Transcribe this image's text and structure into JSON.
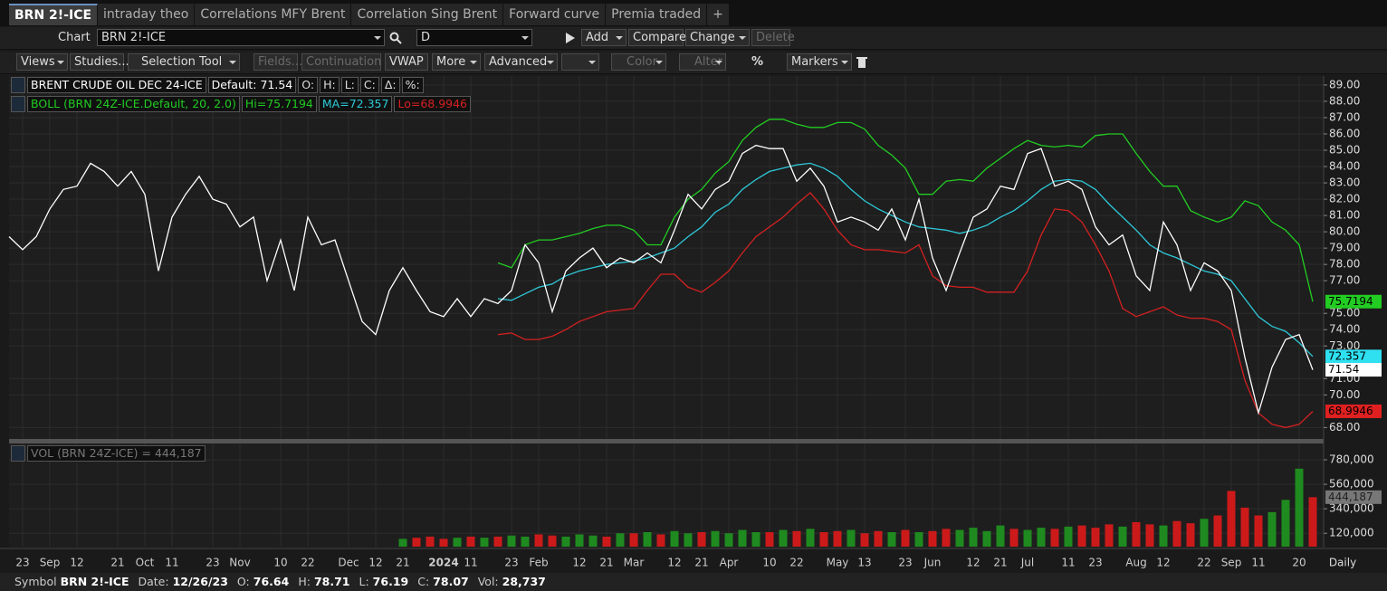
{
  "tabs": [
    "BRN 2!-ICE",
    "intraday theo",
    "Correlations MFY Brent",
    "Correlation Sing Brent",
    "Forward curve",
    "Premia traded",
    "+"
  ],
  "toolbar": {
    "chart_label": "Chart",
    "symbol": "BRN 2!-ICE",
    "interval": "D",
    "buttons": [
      "Add",
      "Compare",
      "Change",
      "Delete"
    ]
  },
  "toolbar2": [
    "Views",
    "Studies...",
    "Selection Tool",
    "Fields...",
    "Continuation",
    "VWAP",
    "More",
    "Advanced",
    "Color",
    "Alter",
    "%",
    "Markers"
  ],
  "status": [
    "Symbol",
    "BRN 2!-ICE",
    "Date:",
    "12/26/23",
    "O:",
    "76.64",
    "H:",
    "78.71",
    "L:",
    "76.19",
    "C:",
    "78.07",
    "Vol:",
    "28,737"
  ],
  "chart_data": {
    "type": "line",
    "legend": [
      "Default: 71.54",
      "O:",
      "H:",
      "L:",
      "C:",
      "Δ:",
      "%:"
    ],
    "study": "BOLL (BRN 24Z-ICE.Default, 20, 2.0)",
    "interval_label": "Daily",
    "grid": true,
    "categories": [
      null,
      "23",
      null,
      "Sep",
      null,
      "12",
      null,
      null,
      "21",
      null,
      "Oct",
      null,
      "11",
      null,
      null,
      "23",
      null,
      "Nov",
      null,
      null,
      "10",
      null,
      "22",
      null,
      null,
      "Dec",
      null,
      "12",
      null,
      "21",
      null,
      null,
      "2024",
      null,
      "11",
      null,
      null,
      "23",
      null,
      "Feb",
      null,
      null,
      "12",
      null,
      "21",
      null,
      "Mar",
      null,
      null,
      "12",
      null,
      "21",
      null,
      "Apr",
      null,
      null,
      "10",
      null,
      "22",
      null,
      null,
      "May",
      null,
      "13",
      null,
      null,
      "23",
      null,
      "Jun",
      null,
      null,
      "12",
      null,
      "21",
      null,
      "Jul",
      null,
      null,
      "11",
      null,
      "23",
      null,
      null,
      "Aug",
      null,
      "12",
      null,
      null,
      "22",
      null,
      "Sep",
      null,
      "11",
      null,
      null,
      "20",
      null
    ],
    "ylim": [
      67.3,
      89.55
    ],
    "yticks": [
      {
        "value": 89,
        "label": "89.00"
      },
      {
        "value": 88,
        "label": "88.00"
      },
      {
        "value": 87,
        "label": "87.00"
      },
      {
        "value": 86,
        "label": "86.00"
      },
      {
        "value": 85,
        "label": "85.00"
      },
      {
        "value": 84,
        "label": "84.00"
      },
      {
        "value": 83,
        "label": "83.00"
      },
      {
        "value": 82,
        "label": "82.00"
      },
      {
        "value": 81,
        "label": "81.00"
      },
      {
        "value": 80,
        "label": "80.00"
      },
      {
        "value": 79,
        "label": "79.00"
      },
      {
        "value": 78,
        "label": "78.00"
      },
      {
        "value": 77,
        "label": "77.00"
      },
      {
        "value": 75,
        "label": "75.00"
      },
      {
        "value": 74,
        "label": "74.00"
      },
      {
        "value": 73,
        "label": "73.00"
      },
      {
        "value": 71,
        "label": "71.00"
      },
      {
        "value": 70,
        "label": "70.00"
      },
      {
        "value": 68,
        "label": "68.00"
      }
    ],
    "series": [
      {
        "name": "BRENT CRUDE OIL DEC 24-ICE",
        "color": "#ffffff",
        "values": [
          79.7,
          78.9,
          79.7,
          81.4,
          82.6,
          82.8,
          84.2,
          83.7,
          82.8,
          83.7,
          82.3,
          77.6,
          80.9,
          82.3,
          83.4,
          82.0,
          81.7,
          80.3,
          80.9,
          77.0,
          79.5,
          76.4,
          80.9,
          79.2,
          79.5,
          77.0,
          74.5,
          73.7,
          76.4,
          77.8,
          76.4,
          75.1,
          74.8,
          75.9,
          74.8,
          75.9,
          75.6,
          76.4,
          79.2,
          78.1,
          75.1,
          77.6,
          78.4,
          79.0,
          77.8,
          78.4,
          78.1,
          78.7,
          78.1,
          80.1,
          82.3,
          81.4,
          82.6,
          83.1,
          84.8,
          85.3,
          85.1,
          85.1,
          83.1,
          83.9,
          82.8,
          80.6,
          80.9,
          80.6,
          80.1,
          81.4,
          79.5,
          82.0,
          78.4,
          76.4,
          78.7,
          80.9,
          81.4,
          82.8,
          82.6,
          84.8,
          85.1,
          82.8,
          83.1,
          82.6,
          80.3,
          79.2,
          79.8,
          77.3,
          76.4,
          80.6,
          79.2,
          76.4,
          78.1,
          77.6,
          76.4,
          72.3,
          68.9,
          71.7,
          73.4,
          73.7,
          71.54
        ]
      },
      {
        "name": "Hi=75.7194",
        "color": "#22cc22",
        "values": [
          null,
          null,
          null,
          null,
          null,
          null,
          null,
          null,
          null,
          null,
          null,
          null,
          null,
          null,
          null,
          null,
          null,
          null,
          null,
          null,
          null,
          null,
          null,
          null,
          null,
          null,
          null,
          null,
          null,
          null,
          null,
          null,
          null,
          null,
          null,
          null,
          78.1,
          77.8,
          79.2,
          79.5,
          79.5,
          79.7,
          79.9,
          80.2,
          80.4,
          80.4,
          80.1,
          79.2,
          79.2,
          80.9,
          82.0,
          82.6,
          83.6,
          84.3,
          85.6,
          86.4,
          86.9,
          86.9,
          86.6,
          86.4,
          86.4,
          86.7,
          86.7,
          86.3,
          85.3,
          84.7,
          83.9,
          82.3,
          82.3,
          83.1,
          83.2,
          83.1,
          83.9,
          84.5,
          85.1,
          85.6,
          85.3,
          85.2,
          85.3,
          85.2,
          85.9,
          86.0,
          86.0,
          84.8,
          83.7,
          82.8,
          82.8,
          81.3,
          80.9,
          80.6,
          80.9,
          81.9,
          81.6,
          80.6,
          80.1,
          79.2,
          75.7194
        ]
      },
      {
        "name": "MA=72.357",
        "color": "#2ec8d8",
        "values": [
          null,
          null,
          null,
          null,
          null,
          null,
          null,
          null,
          null,
          null,
          null,
          null,
          null,
          null,
          null,
          null,
          null,
          null,
          null,
          null,
          null,
          null,
          null,
          null,
          null,
          null,
          null,
          null,
          null,
          null,
          null,
          null,
          null,
          null,
          null,
          null,
          75.9,
          75.8,
          76.2,
          76.6,
          76.8,
          77.3,
          77.6,
          77.8,
          78.0,
          78.1,
          78.2,
          78.4,
          78.7,
          79.0,
          79.7,
          80.3,
          81.2,
          81.7,
          82.6,
          83.2,
          83.7,
          83.9,
          84.1,
          84.2,
          83.9,
          83.4,
          82.6,
          81.9,
          81.4,
          81.0,
          80.6,
          80.3,
          80.2,
          80.1,
          79.9,
          80.1,
          80.4,
          80.9,
          81.3,
          81.9,
          82.6,
          83.1,
          83.2,
          83.1,
          82.6,
          81.7,
          80.9,
          80.1,
          79.2,
          78.7,
          78.4,
          78.0,
          77.6,
          77.4,
          77.0,
          75.9,
          74.8,
          74.2,
          73.9,
          73.2,
          72.357
        ]
      },
      {
        "name": "Lo=68.9946",
        "color": "#d42020",
        "values": [
          null,
          null,
          null,
          null,
          null,
          null,
          null,
          null,
          null,
          null,
          null,
          null,
          null,
          null,
          null,
          null,
          null,
          null,
          null,
          null,
          null,
          null,
          null,
          null,
          null,
          null,
          null,
          null,
          null,
          null,
          null,
          null,
          null,
          null,
          null,
          null,
          73.7,
          73.8,
          73.4,
          73.4,
          73.6,
          74.0,
          74.5,
          74.8,
          75.1,
          75.2,
          75.3,
          76.4,
          77.4,
          77.4,
          76.6,
          76.3,
          76.9,
          77.6,
          78.7,
          79.7,
          80.3,
          80.9,
          81.7,
          82.4,
          81.4,
          80.1,
          79.2,
          78.9,
          78.9,
          78.8,
          78.7,
          79.2,
          77.3,
          76.7,
          76.6,
          76.6,
          76.3,
          76.3,
          76.3,
          77.6,
          79.8,
          81.4,
          81.3,
          80.6,
          79.2,
          77.6,
          75.3,
          74.8,
          75.1,
          75.4,
          74.9,
          74.7,
          74.7,
          74.5,
          74.0,
          70.9,
          68.9,
          68.2,
          68.0,
          68.2,
          68.9946
        ]
      }
    ],
    "markers": [
      {
        "value": 75.7194,
        "color": "#22cc22"
      },
      {
        "value": 72.357,
        "color": "#2ee0f0"
      },
      {
        "value": 71.54,
        "color": "#ffffff"
      },
      {
        "value": 68.9946,
        "color": "#e02020"
      }
    ],
    "volume": {
      "name": "VOL (BRN 24Z-ICE) = 444,187",
      "up_color": "#1f8a1f",
      "down_color": "#cc1a1a",
      "ylim": [
        0,
        910000
      ],
      "yticks": [
        {
          "value": 780000,
          "label": "780,000"
        },
        {
          "value": 560000,
          "label": "560,000"
        },
        {
          "value": 340000,
          "label": "340,000"
        },
        {
          "value": 120000,
          "label": "120,000"
        }
      ],
      "marker": {
        "value": 444187,
        "label": "444,187"
      },
      "values": [
        null,
        null,
        null,
        null,
        null,
        null,
        null,
        null,
        null,
        null,
        null,
        null,
        null,
        null,
        null,
        null,
        null,
        null,
        null,
        null,
        null,
        null,
        null,
        null,
        null,
        null,
        null,
        null,
        null,
        70000,
        80000,
        90000,
        70000,
        80000,
        90000,
        80000,
        90000,
        100000,
        90000,
        110000,
        100000,
        90000,
        110000,
        100000,
        90000,
        120000,
        120000,
        130000,
        110000,
        140000,
        120000,
        130000,
        140000,
        120000,
        150000,
        130000,
        130000,
        150000,
        140000,
        160000,
        130000,
        140000,
        150000,
        120000,
        140000,
        130000,
        150000,
        130000,
        140000,
        160000,
        150000,
        170000,
        140000,
        190000,
        160000,
        150000,
        170000,
        160000,
        180000,
        190000,
        170000,
        200000,
        180000,
        220000,
        200000,
        190000,
        230000,
        210000,
        250000,
        280000,
        500000,
        350000,
        280000,
        310000,
        420000,
        700000,
        444187
      ]
    }
  }
}
